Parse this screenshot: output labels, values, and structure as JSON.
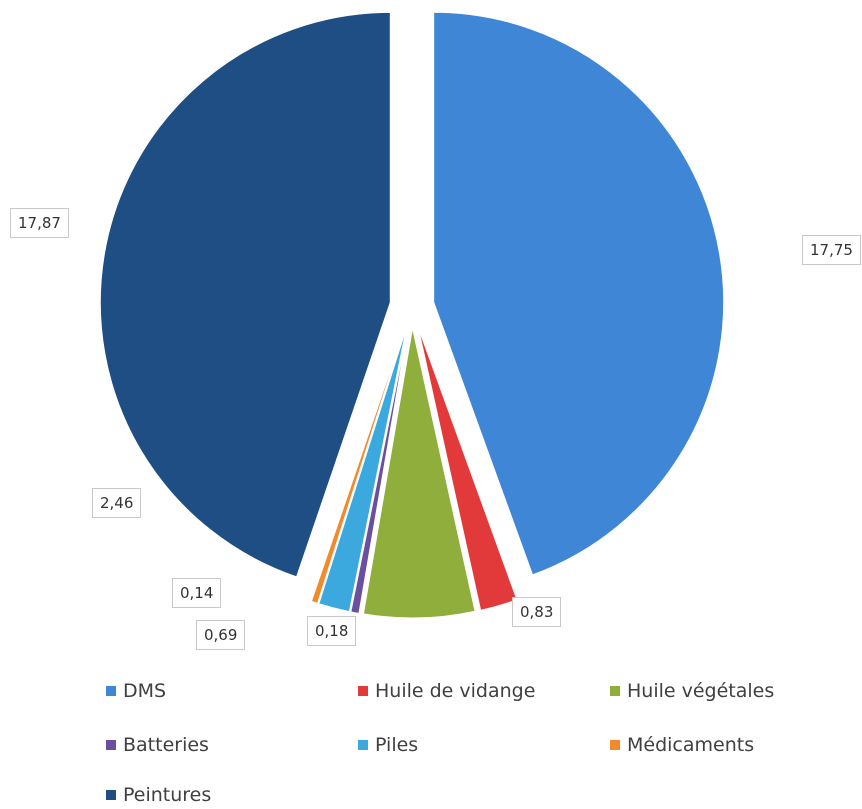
{
  "chart_data": {
    "type": "pie",
    "exploded": true,
    "start": "12 o'clock, clockwise",
    "slices": [
      {
        "name": "DMS",
        "value": 17.75,
        "label": "17,75",
        "color": "#3f87d6"
      },
      {
        "name": "Huile de vidange",
        "value": 0.83,
        "label": "0,83",
        "color": "#e23a3a"
      },
      {
        "name": "Huile végétales",
        "value": 2.46,
        "label": "2,46",
        "color": "#8fae3c"
      },
      {
        "name": "Batteries",
        "value": 0.18,
        "label": "0,18",
        "color": "#6a4fa0"
      },
      {
        "name": "Piles",
        "value": 0.69,
        "label": "0,69",
        "color": "#3ba9de"
      },
      {
        "name": "Médicaments",
        "value": 0.14,
        "label": "0,14",
        "color": "#f08a2a"
      },
      {
        "name": "Peintures",
        "value": 17.87,
        "label": "17,87",
        "color": "#1f4e84"
      }
    ],
    "legend_position": "bottom"
  }
}
